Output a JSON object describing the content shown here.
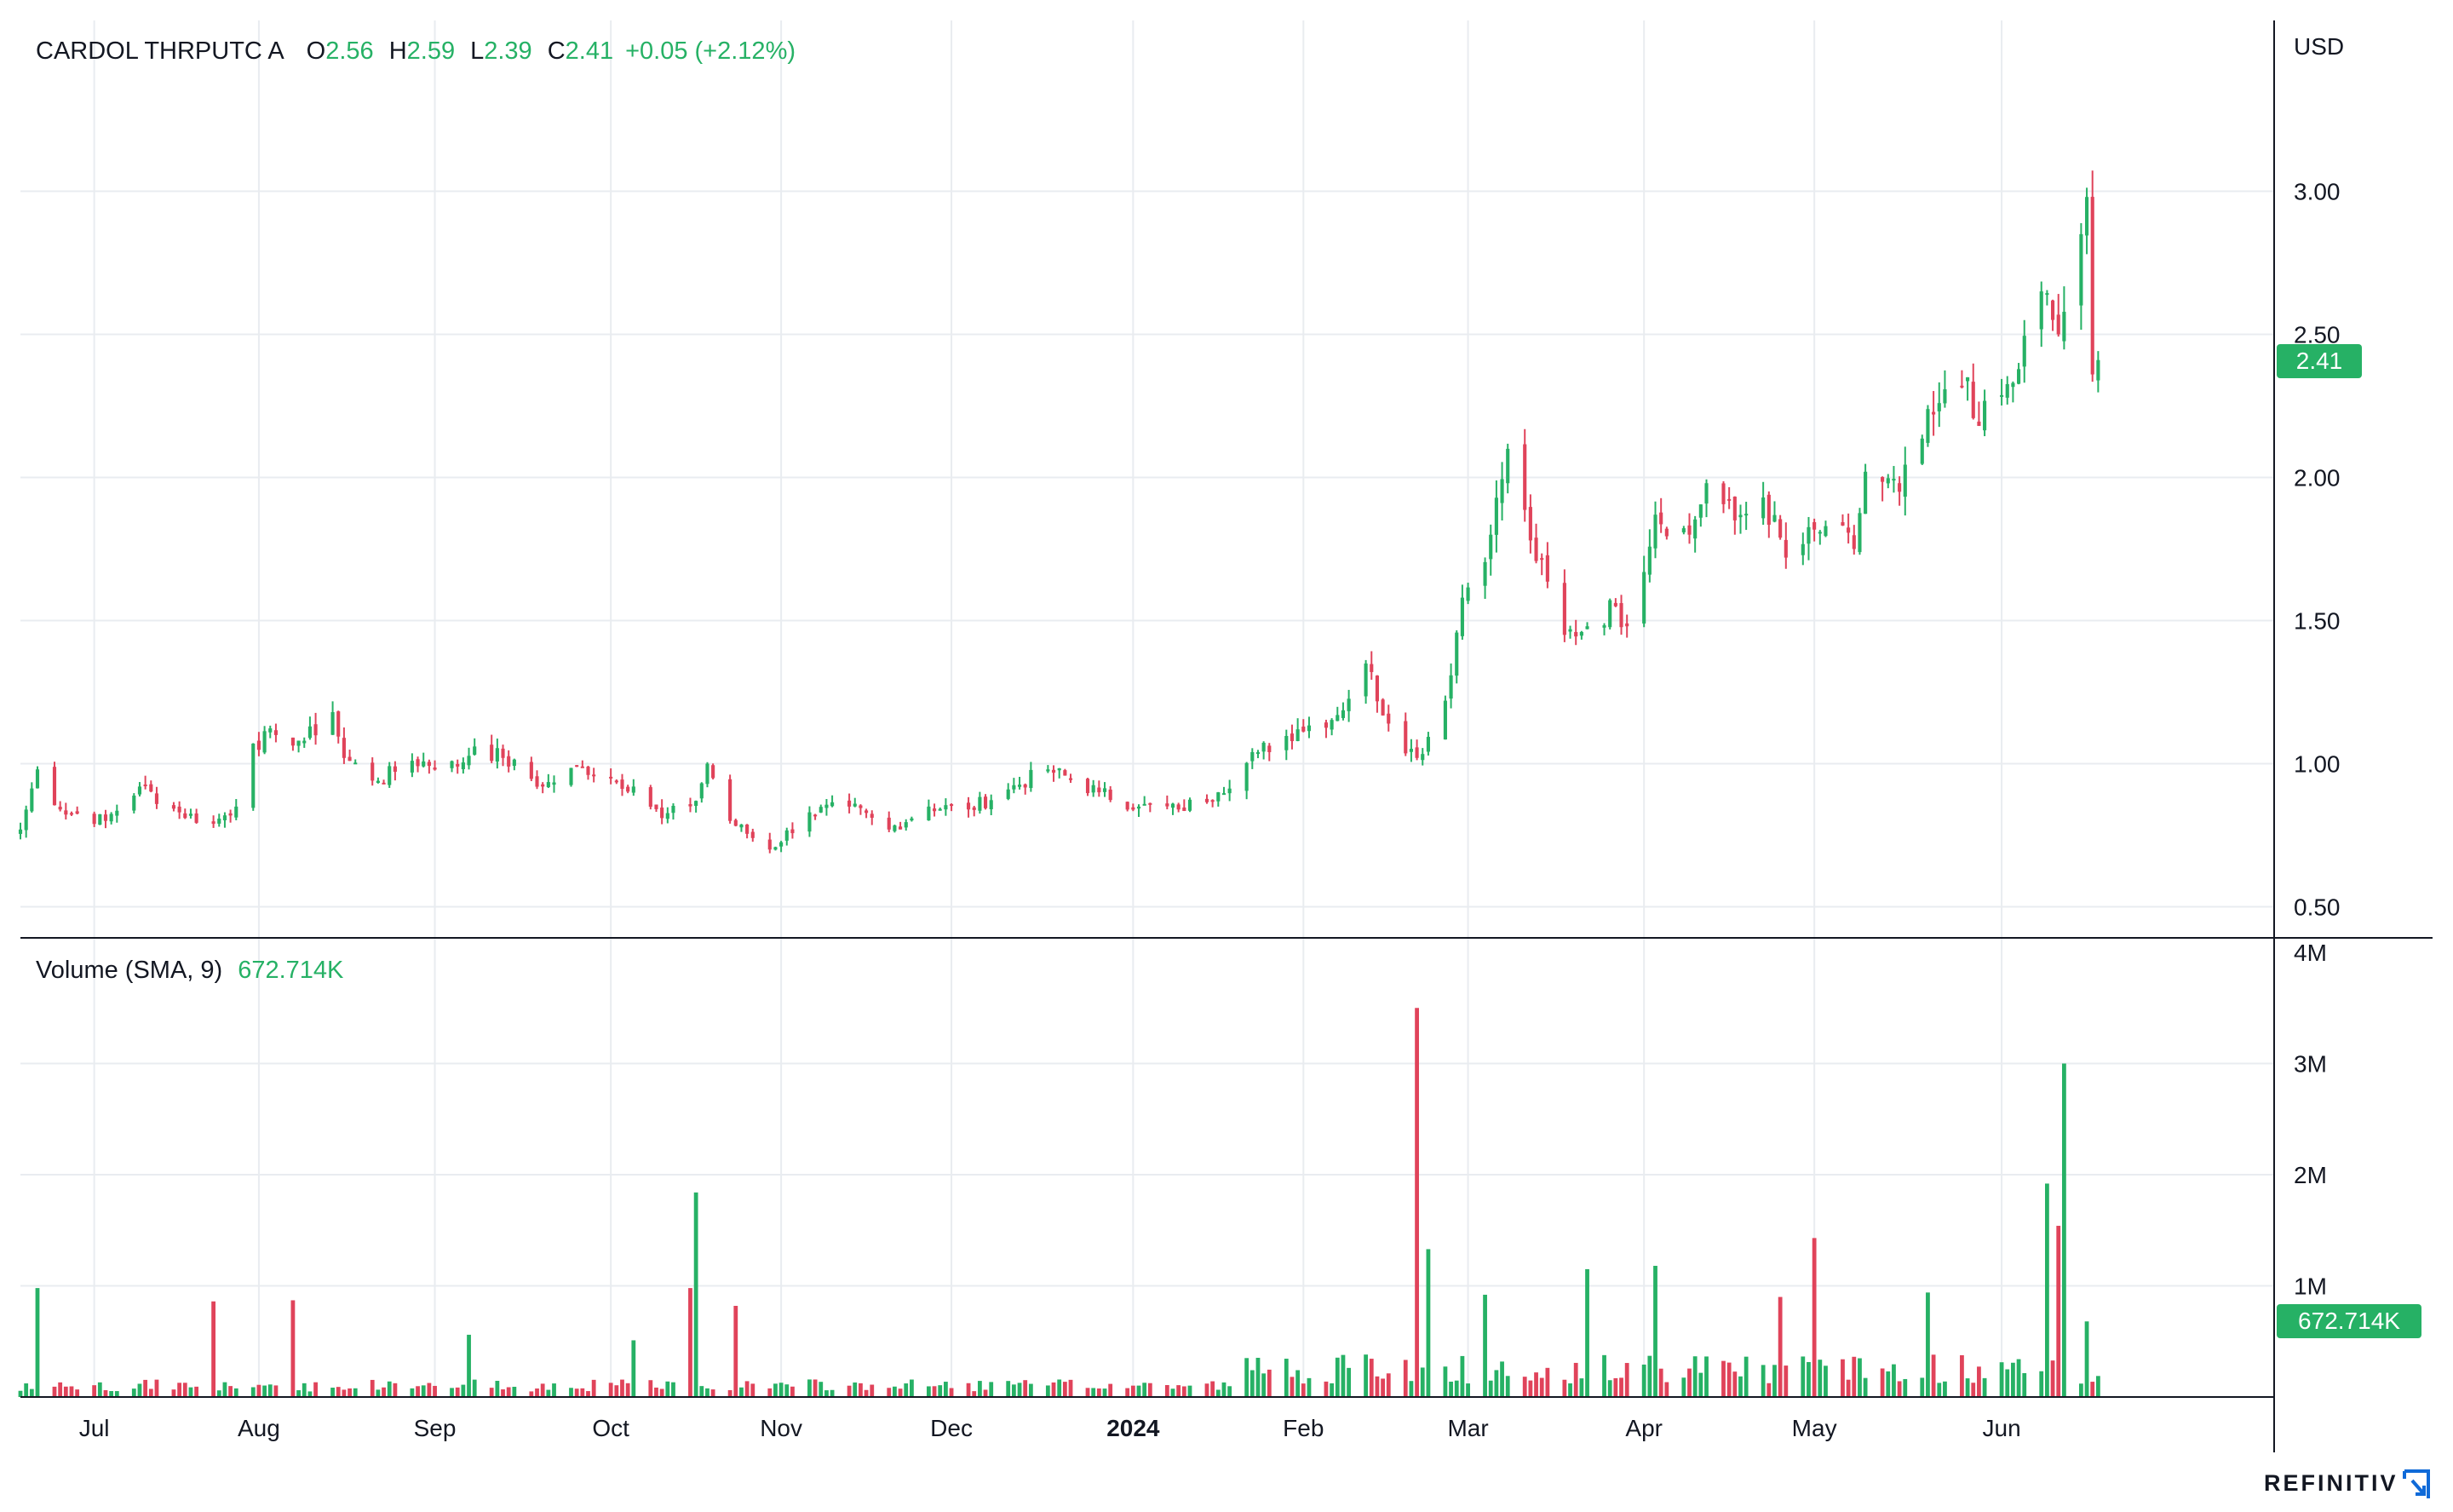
{
  "legend": {
    "name": "CARDOL THRPUTC A",
    "o_label": "O",
    "o_value": "2.56",
    "h_label": "H",
    "h_value": "2.59",
    "l_label": "L",
    "l_value": "2.39",
    "c_label": "C",
    "c_value": "2.41",
    "change": "+0.05 (+2.12%)"
  },
  "volume_legend": {
    "label": "Volume (SMA, 9)",
    "value": "672.714K"
  },
  "currency": "USD",
  "last_price_tag": "2.41",
  "volume_tag": "672.714K",
  "brand": "REFINITIV",
  "colors": {
    "up": "#26b165",
    "down": "#e0435a",
    "grid": "#e9ecf0",
    "axis": "#131722",
    "text": "#131722"
  },
  "chart_data": [
    {
      "type": "candlestick",
      "y_ticks": [
        "0.50",
        "1.00",
        "1.50",
        "2.00",
        "2.50",
        "3.00"
      ],
      "ylim": [
        0.45,
        3.3
      ],
      "x_ticks": [
        {
          "label": "Jul",
          "date": "2023-07-03"
        },
        {
          "label": "Aug",
          "date": "2023-08-01"
        },
        {
          "label": "Sep",
          "date": "2023-09-01"
        },
        {
          "label": "Oct",
          "date": "2023-10-02"
        },
        {
          "label": "Nov",
          "date": "2023-11-01"
        },
        {
          "label": "Dec",
          "date": "2023-12-01"
        },
        {
          "label": "2024",
          "date": "2024-01-02",
          "bold": true
        },
        {
          "label": "Feb",
          "date": "2024-02-01"
        },
        {
          "label": "Mar",
          "date": "2024-03-01"
        },
        {
          "label": "Apr",
          "date": "2024-04-01"
        },
        {
          "label": "May",
          "date": "2024-05-01"
        },
        {
          "label": "Jun",
          "date": "2024-06-03"
        }
      ],
      "x_range": [
        "2023-06-20",
        "2024-07-21"
      ],
      "close_anchors": [
        [
          "2023-06-20",
          0.77
        ],
        [
          "2023-06-23",
          0.98
        ],
        [
          "2023-06-27",
          0.84
        ],
        [
          "2023-07-05",
          0.8
        ],
        [
          "2023-07-11",
          0.92
        ],
        [
          "2023-07-18",
          0.83
        ],
        [
          "2023-07-24",
          0.79
        ],
        [
          "2023-07-28",
          0.85
        ],
        [
          "2023-07-31",
          1.07
        ],
        [
          "2023-08-04",
          1.1
        ],
        [
          "2023-08-09",
          1.08
        ],
        [
          "2023-08-14",
          1.18
        ],
        [
          "2023-08-16",
          1.02
        ],
        [
          "2023-08-22",
          0.94
        ],
        [
          "2023-08-28",
          1.01
        ],
        [
          "2023-09-05",
          0.99
        ],
        [
          "2023-09-08",
          1.06
        ],
        [
          "2023-09-13",
          1.02
        ],
        [
          "2023-09-20",
          0.92
        ],
        [
          "2023-09-27",
          0.99
        ],
        [
          "2023-10-02",
          0.95
        ],
        [
          "2023-10-06",
          0.92
        ],
        [
          "2023-10-11",
          0.81
        ],
        [
          "2023-10-17",
          0.87
        ],
        [
          "2023-10-19",
          1.0
        ],
        [
          "2023-10-23",
          0.8
        ],
        [
          "2023-10-30",
          0.7
        ],
        [
          "2023-11-06",
          0.83
        ],
        [
          "2023-11-13",
          0.85
        ],
        [
          "2023-11-20",
          0.77
        ],
        [
          "2023-11-27",
          0.85
        ],
        [
          "2023-12-04",
          0.84
        ],
        [
          "2023-12-11",
          0.91
        ],
        [
          "2023-12-18",
          0.98
        ],
        [
          "2023-12-27",
          0.9
        ],
        [
          "2024-01-03",
          0.85
        ],
        [
          "2024-01-10",
          0.84
        ],
        [
          "2024-01-17",
          0.9
        ],
        [
          "2024-01-24",
          1.04
        ],
        [
          "2024-01-31",
          1.12
        ],
        [
          "2024-02-07",
          1.17
        ],
        [
          "2024-02-12",
          1.35
        ],
        [
          "2024-02-16",
          1.14
        ],
        [
          "2024-02-21",
          1.02
        ],
        [
          "2024-02-26",
          1.22
        ],
        [
          "2024-02-29",
          1.58
        ],
        [
          "2024-03-05",
          1.8
        ],
        [
          "2024-03-08",
          2.1
        ],
        [
          "2024-03-12",
          1.78
        ],
        [
          "2024-03-18",
          1.45
        ],
        [
          "2024-03-22",
          1.48
        ],
        [
          "2024-03-27",
          1.55
        ],
        [
          "2024-03-29",
          1.48
        ],
        [
          "2024-04-03",
          1.87
        ],
        [
          "2024-04-09",
          1.8
        ],
        [
          "2024-04-12",
          1.98
        ],
        [
          "2024-04-17",
          1.85
        ],
        [
          "2024-04-22",
          1.93
        ],
        [
          "2024-04-26",
          1.72
        ],
        [
          "2024-05-03",
          1.83
        ],
        [
          "2024-05-08",
          1.75
        ],
        [
          "2024-05-10",
          2.02
        ],
        [
          "2024-05-16",
          1.95
        ],
        [
          "2024-05-22",
          2.22
        ],
        [
          "2024-05-28",
          2.35
        ],
        [
          "2024-05-30",
          2.18
        ],
        [
          "2024-06-05",
          2.33
        ],
        [
          "2024-06-10",
          2.65
        ],
        [
          "2024-06-13",
          2.5
        ],
        [
          "2024-06-17",
          2.85
        ],
        [
          "2024-06-18",
          2.98
        ],
        [
          "2024-06-19",
          2.36
        ],
        [
          "2024-06-20",
          2.41
        ]
      ],
      "volume_ticks": [
        "1M",
        "2M",
        "3M",
        "4M"
      ],
      "volume_ylim": [
        0,
        4000000
      ],
      "volume_spikes": [
        [
          "2023-06-23",
          980000
        ],
        [
          "2023-07-24",
          860000
        ],
        [
          "2023-08-07",
          870000
        ],
        [
          "2023-09-07",
          560000
        ],
        [
          "2023-10-06",
          510000
        ],
        [
          "2023-10-16",
          980000
        ],
        [
          "2023-10-17",
          1840000
        ],
        [
          "2023-10-24",
          820000
        ],
        [
          "2024-02-21",
          3500000
        ],
        [
          "2024-02-23",
          1330000
        ],
        [
          "2024-03-04",
          920000
        ],
        [
          "2024-03-22",
          1150000
        ],
        [
          "2024-04-03",
          1180000
        ],
        [
          "2024-04-25",
          900000
        ],
        [
          "2024-05-01",
          1430000
        ],
        [
          "2024-05-21",
          940000
        ],
        [
          "2024-06-11",
          1920000
        ],
        [
          "2024-06-13",
          1540000
        ],
        [
          "2024-06-14",
          3000000
        ],
        [
          "2024-06-18",
          680000
        ]
      ]
    }
  ]
}
